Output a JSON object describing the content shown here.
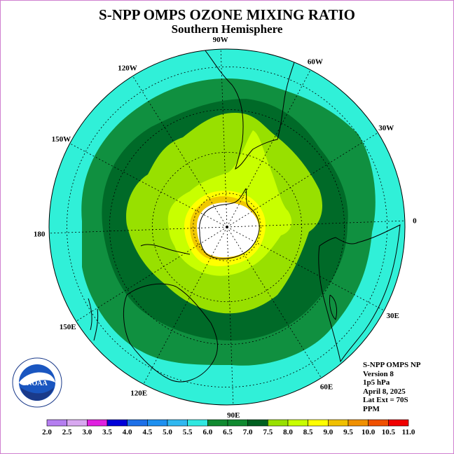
{
  "title": "S-NPP OMPS OZONE MIXING RATIO",
  "subtitle": "Southern Hemisphere",
  "longitude_labels": [
    "90W",
    "60W",
    "30W",
    "0",
    "30E",
    "60E",
    "90E",
    "120E",
    "150E",
    "180",
    "150W",
    "120W"
  ],
  "info": [
    "S-NPP OMPS NP",
    "Version 8",
    "1p5 hPa",
    "April 8, 2025",
    "Lat Ext = 70S",
    "PPM"
  ],
  "logo_text": "NOAA",
  "logo_ring_text": "NATIONAL OCEANIC AND ATMOSPHERIC ADMINISTRATION · U.S. DEPARTMENT OF COMMERCE",
  "colorbar": {
    "levels": [
      "2.0",
      "2.5",
      "3.0",
      "3.5",
      "4.0",
      "4.5",
      "5.0",
      "5.5",
      "6.0",
      "6.5",
      "7.0",
      "7.5",
      "8.0",
      "8.5",
      "9.0",
      "9.5",
      "10.0",
      "10.5",
      "11.0"
    ],
    "colors": [
      "#b57ef0",
      "#d8a8f0",
      "#e020e0",
      "#0000d8",
      "#1e70e8",
      "#1e90f0",
      "#30b8f0",
      "#30e8e0",
      "#108a30",
      "#108a30",
      "#006020",
      "#98e000",
      "#c8ff00",
      "#ffff00",
      "#f0c000",
      "#f09000",
      "#f05000",
      "#f00000",
      "#806040"
    ]
  },
  "map_colors": {
    "background": "#30f0d8",
    "band_65": "#109040",
    "band_70": "#006a28",
    "band_75": "#98e000",
    "band_80": "#c8ff00",
    "band_85": "#ffff00",
    "band_90": "#f0c800",
    "pole": "#ffffff"
  }
}
